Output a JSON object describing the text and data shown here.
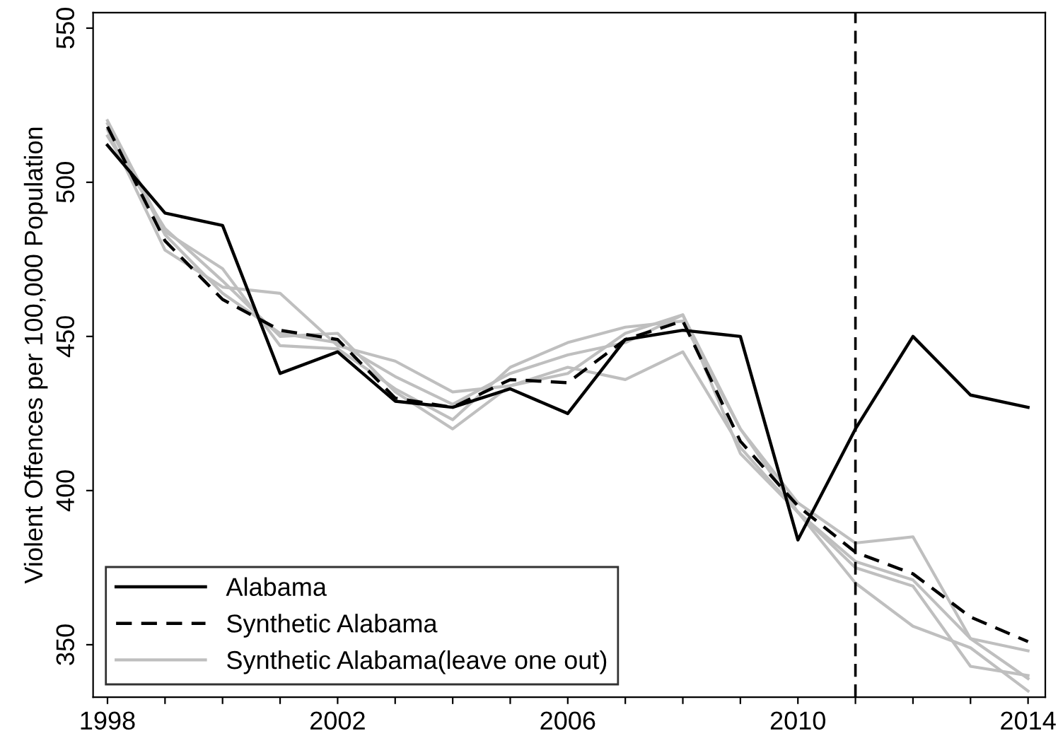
{
  "chart_data": {
    "type": "line",
    "ylabel": "Violent Offences per 100,000 Population",
    "x": [
      1998,
      1999,
      2000,
      2001,
      2002,
      2003,
      2004,
      2005,
      2006,
      2007,
      2008,
      2009,
      2010,
      2011,
      2012,
      2013,
      2014
    ],
    "series": [
      {
        "name": "Synthetic Alabama(leave one out)",
        "color": "#bfbfbf",
        "values": [
          520,
          484,
          472,
          447,
          446,
          433,
          423,
          440,
          448,
          453,
          455,
          420,
          396,
          383,
          385,
          352,
          348
        ]
      },
      {
        "color": "#bfbfbf",
        "values": [
          517,
          478,
          466,
          464,
          447,
          442,
          432,
          434,
          440,
          436,
          445,
          414,
          393,
          375,
          369,
          343,
          340
        ]
      },
      {
        "color": "#bfbfbf",
        "values": [
          515,
          485,
          468,
          450,
          451,
          432,
          420,
          434,
          438,
          451,
          457,
          420,
          393,
          370,
          356,
          349,
          335
        ]
      },
      {
        "color": "#bfbfbf",
        "values": [
          519,
          483,
          464,
          451,
          448,
          437,
          428,
          438,
          444,
          448,
          457,
          412,
          393,
          377,
          371,
          352,
          339
        ]
      },
      {
        "name": "Synthetic Alabama",
        "color": "#000000",
        "line_style": "dashed",
        "values": [
          518,
          481,
          462,
          452,
          449,
          430,
          427,
          436,
          435,
          449,
          455,
          416,
          395,
          380,
          373,
          359,
          351
        ]
      },
      {
        "name": "Alabama",
        "color": "#000000",
        "line_style": "solid",
        "values": [
          512,
          490,
          486,
          438,
          445,
          429,
          427,
          433,
          425,
          449,
          452,
          450,
          384,
          420,
          450,
          431,
          427
        ]
      }
    ],
    "xlim": [
      1997.75,
      2014.3
    ],
    "ylim": [
      333,
      555
    ],
    "xticks": [
      1998,
      {
        "value": 1999,
        "label": null
      },
      {
        "value": 2000,
        "label": null
      },
      {
        "value": 2001,
        "label": null
      },
      2002,
      {
        "value": 2003,
        "label": null
      },
      {
        "value": 2004,
        "label": null
      },
      {
        "value": 2005,
        "label": null
      },
      2006,
      {
        "value": 2007,
        "label": null
      },
      {
        "value": 2008,
        "label": null
      },
      {
        "value": 2009,
        "label": null
      },
      2010,
      {
        "value": 2011,
        "label": null
      },
      {
        "value": 2012,
        "label": null
      },
      {
        "value": 2013,
        "label": null
      },
      2014
    ],
    "yticks": [
      350,
      400,
      450,
      500,
      550
    ],
    "ref_lines": [
      {
        "axis": "x",
        "value": 2011,
        "color": "#000000",
        "line_style": "dashed"
      }
    ],
    "grid": false,
    "legend": "bottom left",
    "marker": "none"
  }
}
